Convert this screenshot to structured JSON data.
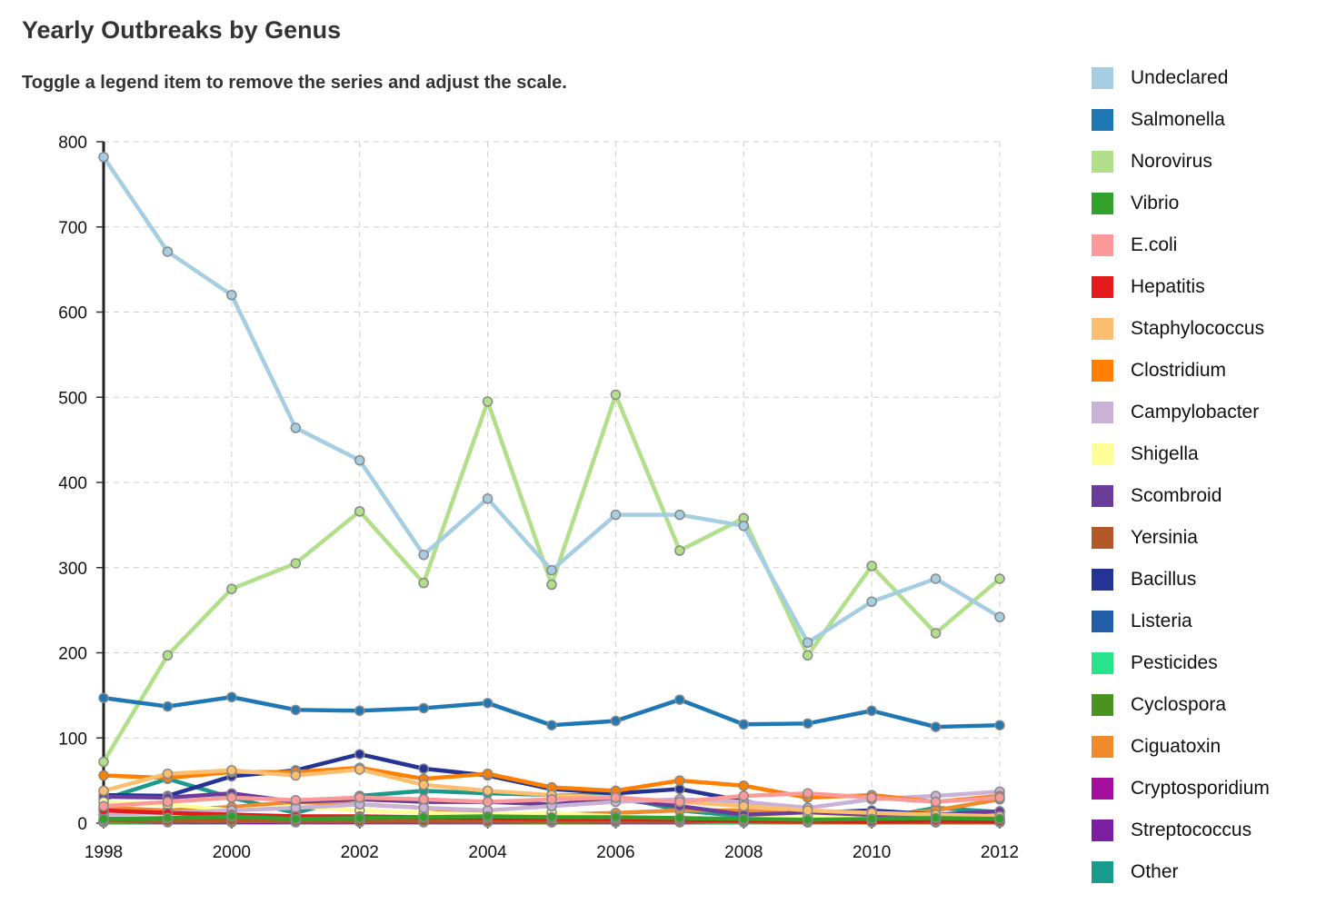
{
  "header": {
    "title": "Yearly Outbreaks by Genus",
    "subtitle": "Toggle a legend item to remove the series and adjust the scale."
  },
  "chart_data": {
    "type": "line",
    "title": "Yearly Outbreaks by Genus",
    "subtitle": "Toggle a legend item to remove the series and adjust the scale.",
    "xlabel": "",
    "ylabel": "",
    "x": [
      1998,
      1999,
      2000,
      2001,
      2002,
      2003,
      2004,
      2005,
      2006,
      2007,
      2008,
      2009,
      2010,
      2011,
      2012
    ],
    "xlim": [
      1998,
      2012
    ],
    "ylim": [
      0,
      800
    ],
    "x_ticks": [
      "1998",
      "2000",
      "2002",
      "2004",
      "2006",
      "2008",
      "2010",
      "2012"
    ],
    "y_ticks": [
      "0",
      "100",
      "200",
      "300",
      "400",
      "500",
      "600",
      "700",
      "800"
    ],
    "grid": true,
    "legend": "right",
    "series": [
      {
        "name": "Undeclared",
        "color": "#a6cee3",
        "values": [
          782,
          671,
          620,
          464,
          426,
          315,
          381,
          297,
          362,
          362,
          349,
          212,
          260,
          287,
          242
        ]
      },
      {
        "name": "Salmonella",
        "color": "#1f78b4",
        "values": [
          147,
          137,
          148,
          133,
          132,
          135,
          141,
          115,
          120,
          145,
          116,
          117,
          132,
          113,
          115
        ]
      },
      {
        "name": "Norovirus",
        "color": "#b2df8a",
        "values": [
          72,
          197,
          275,
          305,
          366,
          282,
          495,
          280,
          503,
          320,
          358,
          197,
          302,
          223,
          287
        ]
      },
      {
        "name": "Vibrio",
        "color": "#33a02c",
        "values": [
          5,
          6,
          8,
          5,
          6,
          7,
          8,
          7,
          7,
          6,
          5,
          4,
          5,
          6,
          5
        ]
      },
      {
        "name": "E.coli",
        "color": "#fb9a99",
        "values": [
          20,
          25,
          30,
          27,
          30,
          28,
          25,
          28,
          30,
          25,
          32,
          35,
          30,
          25,
          30
        ]
      },
      {
        "name": "Hepatitis",
        "color": "#e31a1c",
        "values": [
          15,
          12,
          10,
          8,
          8,
          7,
          6,
          5,
          5,
          4,
          3,
          3,
          2,
          3,
          2
        ]
      },
      {
        "name": "Staphylococcus",
        "color": "#fdbf6f",
        "values": [
          38,
          58,
          62,
          56,
          63,
          45,
          38,
          33,
          30,
          25,
          20,
          15,
          12,
          10,
          8
        ]
      },
      {
        "name": "Clostridium",
        "color": "#ff7f00",
        "values": [
          56,
          53,
          60,
          60,
          65,
          52,
          58,
          42,
          38,
          50,
          44,
          30,
          33,
          25,
          32
        ]
      },
      {
        "name": "Campylobacter",
        "color": "#cab2d6",
        "values": [
          10,
          12,
          15,
          18,
          22,
          18,
          15,
          20,
          25,
          28,
          25,
          18,
          28,
          32,
          37
        ]
      },
      {
        "name": "Shigella",
        "color": "#ffff99",
        "values": [
          25,
          22,
          15,
          20,
          15,
          12,
          10,
          12,
          8,
          6,
          5,
          8,
          5,
          6,
          4
        ]
      },
      {
        "name": "Scombroid",
        "color": "#6a3d9a",
        "values": [
          31,
          30,
          35,
          25,
          28,
          25,
          25,
          22,
          28,
          20,
          10,
          12,
          8,
          10,
          14
        ]
      },
      {
        "name": "Yersinia",
        "color": "#b15928",
        "values": [
          3,
          2,
          3,
          2,
          2,
          2,
          2,
          2,
          2,
          2,
          2,
          1,
          1,
          1,
          1
        ]
      },
      {
        "name": "Bacillus",
        "color": "#253494",
        "values": [
          33,
          32,
          55,
          62,
          81,
          64,
          56,
          40,
          35,
          40,
          26,
          12,
          15,
          10,
          5
        ]
      },
      {
        "name": "Listeria",
        "color": "#225ea8",
        "values": [
          4,
          5,
          6,
          5,
          5,
          6,
          5,
          4,
          4,
          5,
          4,
          3,
          4,
          3,
          3
        ]
      },
      {
        "name": "Pesticides",
        "color": "#29e38a",
        "values": [
          2,
          2,
          3,
          2,
          3,
          2,
          2,
          2,
          2,
          2,
          1,
          1,
          1,
          1,
          1
        ]
      },
      {
        "name": "Cyclospora",
        "color": "#4d9221",
        "values": [
          1,
          2,
          2,
          3,
          2,
          2,
          2,
          1,
          2,
          2,
          1,
          1,
          1,
          2,
          1
        ]
      },
      {
        "name": "Ciguatoxin",
        "color": "#ef8a2d",
        "values": [
          18,
          15,
          19,
          25,
          22,
          18,
          10,
          10,
          12,
          15,
          15,
          10,
          8,
          15,
          28
        ]
      },
      {
        "name": "Cryptosporidium",
        "color": "#a50f9e",
        "values": [
          2,
          2,
          3,
          3,
          3,
          4,
          3,
          2,
          3,
          2,
          2,
          2,
          2,
          3,
          2
        ]
      },
      {
        "name": "Streptococcus",
        "color": "#7b1fa2",
        "values": [
          1,
          1,
          1,
          1,
          1,
          1,
          1,
          1,
          1,
          1,
          1,
          1,
          1,
          1,
          1
        ]
      },
      {
        "name": "Other",
        "color": "#1a9a8a",
        "values": [
          28,
          52,
          30,
          12,
          32,
          38,
          35,
          33,
          32,
          15,
          8,
          6,
          4,
          18,
          13
        ]
      }
    ]
  }
}
